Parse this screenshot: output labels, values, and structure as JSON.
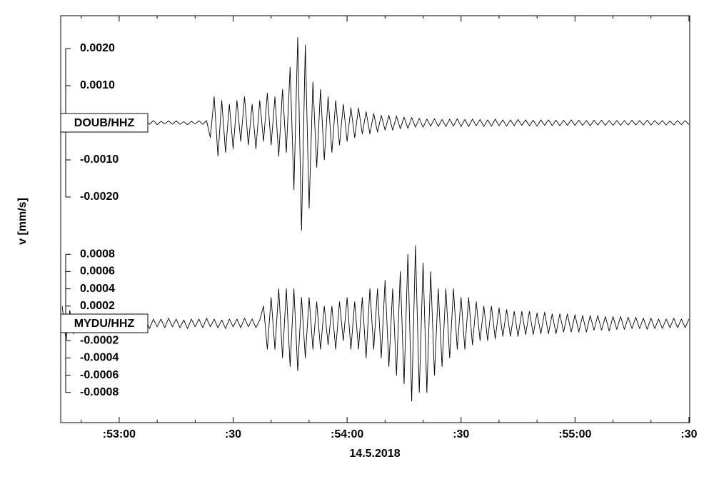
{
  "chart_data": {
    "type": "seismogram",
    "xlabel": "14.5.2018",
    "ylabel": "v [mm/s]",
    "xlim": [
      44.6,
      210.2
    ],
    "xticks": [
      {
        "value": 60,
        "label": ":53:00"
      },
      {
        "value": 90,
        "label": ":30"
      },
      {
        "value": 120,
        "label": ":54:00"
      },
      {
        "value": 150,
        "label": ":30"
      },
      {
        "value": 180,
        "label": ":55:00"
      },
      {
        "value": 210,
        "label": ":30"
      }
    ],
    "xminorticks": [
      50,
      70,
      80,
      100,
      110,
      130,
      140,
      160,
      170,
      190,
      200
    ],
    "x": [
      45,
      46,
      47,
      48,
      49,
      50,
      51,
      52,
      53,
      54,
      55,
      56,
      57,
      58,
      59,
      60,
      61,
      62,
      63,
      64,
      65,
      66,
      67,
      68,
      69,
      70,
      71,
      72,
      73,
      74,
      75,
      76,
      77,
      78,
      79,
      80,
      81,
      82,
      83,
      84,
      85,
      86,
      87,
      88,
      89,
      90,
      91,
      92,
      93,
      94,
      95,
      96,
      97,
      98,
      99,
      100,
      101,
      102,
      103,
      104,
      105,
      106,
      107,
      108,
      109,
      110,
      111,
      112,
      113,
      114,
      115,
      116,
      117,
      118,
      119,
      120,
      121,
      122,
      123,
      124,
      125,
      126,
      127,
      128,
      129,
      130,
      131,
      132,
      133,
      134,
      135,
      136,
      137,
      138,
      139,
      140,
      141,
      142,
      143,
      144,
      145,
      146,
      147,
      148,
      149,
      150,
      151,
      152,
      153,
      154,
      155,
      156,
      157,
      158,
      159,
      160,
      161,
      162,
      163,
      164,
      165,
      166,
      167,
      168,
      169,
      170,
      171,
      172,
      173,
      174,
      175,
      176,
      177,
      178,
      179,
      180,
      181,
      182,
      183,
      184,
      185,
      186,
      187,
      188,
      189,
      190,
      191,
      192,
      193,
      194,
      195,
      196,
      197,
      198,
      199,
      200,
      201,
      202,
      203,
      204,
      205,
      206,
      207,
      208,
      209,
      210
    ],
    "series": [
      {
        "name": "DOUB/HHZ",
        "color": "#000000",
        "ylim": [
          -0.003,
          0.003
        ],
        "yticks": [
          {
            "value": 0.002,
            "label": "0.0020"
          },
          {
            "value": 0.001,
            "label": "0.0010"
          },
          {
            "value": -0.001,
            "label": "-0.0010"
          },
          {
            "value": -0.002,
            "label": "-0.0020"
          }
        ],
        "values": [
          3e-05,
          -4e-05,
          5e-05,
          -3e-05,
          4e-05,
          -5e-05,
          3e-05,
          -4e-05,
          5e-05,
          -4e-05,
          4e-05,
          -3e-05,
          5e-05,
          -4e-05,
          3e-05,
          -5e-05,
          4e-05,
          -3e-05,
          5e-05,
          -4e-05,
          4e-05,
          -3e-05,
          5e-05,
          -4e-05,
          6e-05,
          -5e-05,
          4e-05,
          -3e-05,
          5e-05,
          -4e-05,
          5e-05,
          -4e-05,
          3e-05,
          -5e-05,
          4e-05,
          -3e-05,
          5e-05,
          -4e-05,
          6e-05,
          -0.0004,
          0.0007,
          -0.0009,
          0.0006,
          -0.0008,
          0.0005,
          -0.0007,
          0.0006,
          -0.0005,
          0.0007,
          -0.0006,
          0.0005,
          -0.0007,
          0.0006,
          -0.0005,
          0.0008,
          -0.0006,
          0.0007,
          -0.0009,
          0.0009,
          -0.0008,
          0.0015,
          -0.0018,
          0.0023,
          -0.0029,
          0.0021,
          -0.0023,
          0.0011,
          -0.0012,
          0.0009,
          -0.001,
          0.0007,
          -0.0008,
          0.0006,
          -0.0006,
          0.0005,
          -0.0005,
          0.0004,
          -0.0004,
          0.0004,
          -0.0003,
          0.0003,
          -0.0003,
          0.00025,
          -0.00025,
          0.0002,
          -0.0002,
          0.0002,
          -0.0002,
          0.00018,
          -0.00016,
          0.00015,
          -0.00015,
          0.00014,
          -0.00012,
          0.00012,
          -0.00012,
          0.0001,
          -9e-05,
          0.00011,
          -0.0001,
          9e-05,
          -0.0001,
          0.0001,
          -9e-05,
          0.00011,
          -0.0001,
          9e-05,
          -0.0001,
          0.0001,
          -8e-05,
          9e-05,
          -0.0001,
          8e-05,
          -9e-05,
          0.0001,
          -8e-05,
          8e-05,
          -9e-05,
          8e-05,
          -8e-05,
          9e-05,
          -7e-05,
          8e-05,
          -8e-05,
          7e-05,
          -9e-05,
          8e-05,
          -7e-05,
          8e-05,
          -8e-05,
          7e-05,
          -8e-05,
          7e-05,
          -7e-05,
          8e-05,
          -7e-05,
          7e-05,
          -7e-05,
          6e-05,
          -8e-05,
          7e-05,
          -6e-05,
          7e-05,
          -7e-05,
          6e-05,
          -7e-05,
          6e-05,
          -7e-05,
          6e-05,
          -6e-05,
          7e-05,
          -6e-05,
          6e-05,
          -6e-05,
          7e-05,
          -6e-05,
          6e-05,
          -5e-05,
          6e-05,
          -6e-05,
          5e-05,
          -6e-05,
          6e-05,
          -5e-05,
          6e-05,
          -5e-05
        ]
      },
      {
        "name": "MYDU/HHZ",
        "color": "#000000",
        "ylim": [
          -0.001,
          0.001
        ],
        "yticks": [
          {
            "value": 0.0008,
            "label": "0.0008"
          },
          {
            "value": 0.0006,
            "label": "0.0006"
          },
          {
            "value": 0.0004,
            "label": "0.0004"
          },
          {
            "value": 0.0002,
            "label": "0.0002"
          },
          {
            "value": -0.0002,
            "label": "-0.0002"
          },
          {
            "value": -0.0004,
            "label": "-0.0004"
          },
          {
            "value": -0.0006,
            "label": "-0.0006"
          },
          {
            "value": -0.0008,
            "label": "-0.0008"
          }
        ],
        "values": [
          0.0002,
          -0.0002,
          0.00015,
          -0.00012,
          0.0001,
          -5e-05,
          4e-05,
          -5e-05,
          6e-05,
          -4e-05,
          5e-05,
          -5e-05,
          4e-05,
          -6e-05,
          5e-05,
          -4e-05,
          5e-05,
          -5e-05,
          6e-05,
          -4e-05,
          5e-05,
          -5e-05,
          4e-05,
          -6e-05,
          5e-05,
          -4e-05,
          5e-05,
          -5e-05,
          6e-05,
          -4e-05,
          5e-05,
          -5e-05,
          4e-05,
          -6e-05,
          5e-05,
          -4e-05,
          5e-05,
          -5e-05,
          6e-05,
          -4e-05,
          5e-05,
          -5e-05,
          4e-05,
          -6e-05,
          5e-05,
          -4e-05,
          5e-05,
          -5e-05,
          6e-05,
          -4e-05,
          5e-05,
          -5e-05,
          4e-05,
          0.0002,
          -0.0003,
          0.0003,
          -0.0003,
          0.0004,
          -0.0004,
          0.0004,
          -0.0005,
          0.0004,
          -0.00055,
          0.0003,
          -0.0004,
          0.0003,
          -0.0003,
          0.00025,
          -0.0003,
          0.0002,
          -0.00025,
          0.0002,
          -0.0003,
          0.00025,
          -0.0002,
          0.0003,
          -0.0003,
          0.00025,
          -0.0003,
          0.0003,
          -0.0004,
          0.0004,
          -0.0003,
          0.0004,
          -0.0004,
          0.0005,
          -0.0005,
          0.0004,
          -0.0006,
          0.0006,
          -0.0007,
          0.0008,
          -0.0009,
          0.0009,
          -0.0008,
          0.0007,
          -0.0008,
          0.0006,
          -0.0006,
          0.0004,
          -0.0005,
          0.0004,
          -0.0004,
          0.0004,
          -0.0003,
          0.0003,
          -0.0003,
          0.0003,
          -0.00025,
          0.00025,
          -0.0002,
          0.0002,
          -0.0002,
          0.0002,
          -0.00018,
          0.00018,
          -0.00015,
          0.00016,
          -0.00015,
          0.00014,
          -0.00015,
          0.00014,
          -0.00013,
          0.00014,
          -0.00013,
          0.00012,
          -0.00012,
          0.00013,
          -0.00012,
          0.00011,
          -0.00012,
          0.00011,
          -0.0001,
          0.00011,
          -0.0001,
          0.0001,
          -0.0001,
          9e-05,
          -0.0001,
          9e-05,
          -8e-05,
          9e-05,
          -8e-05,
          8e-05,
          -9e-05,
          8e-05,
          -7e-05,
          8e-05,
          -7e-05,
          7e-05,
          -6e-05,
          7e-05,
          -6e-05,
          6e-05,
          -7e-05,
          6e-05,
          -6e-05,
          5e-05,
          -6e-05,
          5e-05,
          -5e-05,
          6e-05,
          -5e-05,
          5e-05,
          -5e-05,
          5e-05
        ]
      }
    ]
  }
}
